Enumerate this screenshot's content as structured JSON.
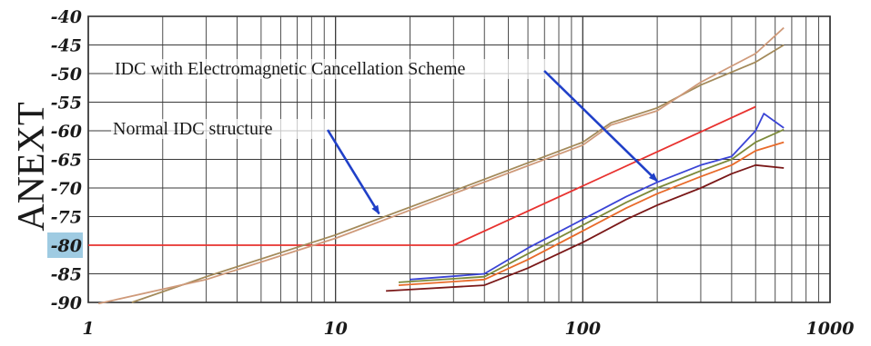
{
  "chart_data": {
    "type": "line",
    "xscale": "log",
    "xlim": [
      1,
      1000
    ],
    "ylim": [
      -90,
      -40
    ],
    "ylabel": "ANEXT",
    "xticks": [
      "1",
      "10",
      "100",
      "1000"
    ],
    "yticks": [
      "-40",
      "-45",
      "-50",
      "-55",
      "-60",
      "-65",
      "-70",
      "-75",
      "-80",
      "-85",
      "-90"
    ],
    "highlighted_ytick": "-80",
    "grid": true,
    "annotations": [
      {
        "text": "IDC with Electromagnetic Cancellation Scheme",
        "arrow_to": [
          200,
          -68.8
        ]
      },
      {
        "text": "Normal IDC structure",
        "arrow_to": [
          15,
          -74.5
        ]
      }
    ],
    "series": [
      {
        "color": "#e8322f",
        "points": [
          [
            1,
            -80
          ],
          [
            30,
            -80
          ],
          [
            500,
            -55.8
          ]
        ]
      },
      {
        "color": "#a38a5a",
        "points": [
          [
            1.5,
            -90
          ],
          [
            3,
            -85.5
          ],
          [
            10,
            -78.2
          ],
          [
            30,
            -70.5
          ],
          [
            100,
            -62
          ],
          [
            130,
            -58.6
          ],
          [
            200,
            -56
          ],
          [
            300,
            -52
          ],
          [
            500,
            -48
          ],
          [
            650,
            -45
          ]
        ]
      },
      {
        "color": "#cf9a7a",
        "points": [
          [
            1.1,
            -90.2
          ],
          [
            3,
            -86
          ],
          [
            10,
            -78.8
          ],
          [
            30,
            -71
          ],
          [
            100,
            -62.5
          ],
          [
            130,
            -59
          ],
          [
            200,
            -56.5
          ],
          [
            300,
            -51.5
          ],
          [
            500,
            -46.5
          ],
          [
            650,
            -42
          ]
        ]
      },
      {
        "color": "#3a44d6",
        "points": [
          [
            20,
            -86
          ],
          [
            40,
            -85
          ],
          [
            60,
            -80.5
          ],
          [
            100,
            -75.5
          ],
          [
            150,
            -71.5
          ],
          [
            200,
            -69
          ],
          [
            300,
            -66
          ],
          [
            400,
            -64.5
          ],
          [
            500,
            -60
          ],
          [
            540,
            -57
          ],
          [
            650,
            -59.5
          ]
        ]
      },
      {
        "color": "#7c8a3a",
        "points": [
          [
            18,
            -86.5
          ],
          [
            40,
            -85.5
          ],
          [
            60,
            -81.5
          ],
          [
            100,
            -76.5
          ],
          [
            150,
            -72.5
          ],
          [
            200,
            -70
          ],
          [
            300,
            -67
          ],
          [
            400,
            -65
          ],
          [
            500,
            -62
          ],
          [
            650,
            -59.8
          ]
        ]
      },
      {
        "color": "#e86a2a",
        "points": [
          [
            18,
            -87
          ],
          [
            40,
            -86
          ],
          [
            60,
            -82.5
          ],
          [
            100,
            -77.5
          ],
          [
            150,
            -73.5
          ],
          [
            200,
            -71
          ],
          [
            300,
            -68
          ],
          [
            400,
            -66
          ],
          [
            500,
            -63.5
          ],
          [
            650,
            -62
          ]
        ]
      },
      {
        "color": "#7a1818",
        "points": [
          [
            16,
            -88
          ],
          [
            40,
            -87
          ],
          [
            60,
            -84
          ],
          [
            100,
            -79.5
          ],
          [
            150,
            -75.5
          ],
          [
            200,
            -73
          ],
          [
            300,
            -70
          ],
          [
            400,
            -67.5
          ],
          [
            500,
            -66
          ],
          [
            650,
            -66.5
          ]
        ]
      }
    ]
  }
}
